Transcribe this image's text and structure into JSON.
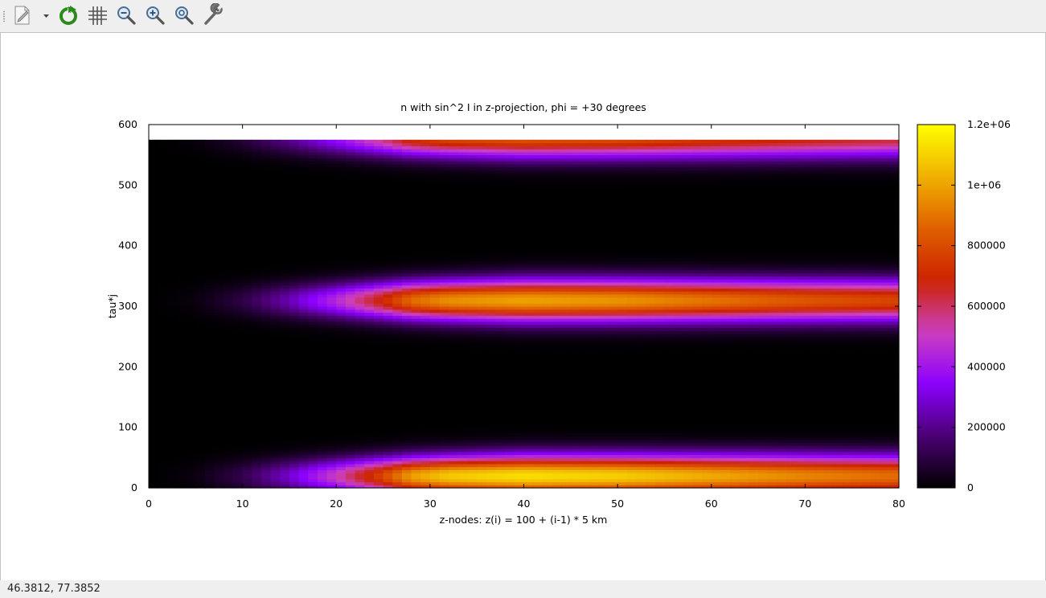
{
  "toolbar": {
    "buttons": [
      {
        "name": "export-icon"
      },
      {
        "name": "export-menu-arrow-icon"
      },
      {
        "name": "replot-icon"
      },
      {
        "name": "grid-icon"
      },
      {
        "name": "zoom-out-icon"
      },
      {
        "name": "zoom-in-icon"
      },
      {
        "name": "zoom-reset-icon"
      },
      {
        "name": "settings-wrench-icon"
      }
    ]
  },
  "status": {
    "coordinates": "46.3812,  77.3852"
  },
  "colors": {
    "colormap": [
      "#000000",
      "#4b0073",
      "#8b00ff",
      "#cc40c0",
      "#cc2200",
      "#e06000",
      "#f0b000",
      "#ffff00"
    ]
  },
  "chart_data": {
    "type": "heatmap",
    "title": "n with sin^2 I in z-projection, phi = +30 degrees",
    "xlabel": "z-nodes: z(i) = 100 + (i-1) * 5 km",
    "ylabel": "tau*j",
    "xlim": [
      0,
      80
    ],
    "ylim": [
      0,
      600
    ],
    "xticks": [
      "0",
      "10",
      "20",
      "30",
      "40",
      "50",
      "60",
      "70",
      "80"
    ],
    "yticks": [
      "0",
      "100",
      "200",
      "300",
      "400",
      "500",
      "600"
    ],
    "colorbar": {
      "range": [
        0,
        1200000
      ],
      "ticks": [
        "0",
        "200000",
        "400000",
        "600000",
        "800000",
        "1e+06",
        "1.2e+06"
      ]
    },
    "data_extent": {
      "x": [
        0,
        80
      ],
      "y": [
        0,
        575
      ]
    },
    "x_profile": [
      [
        0,
        0
      ],
      [
        5,
        0.02
      ],
      [
        10,
        0.1
      ],
      [
        15,
        0.25
      ],
      [
        20,
        0.45
      ],
      [
        25,
        0.7
      ],
      [
        28,
        0.88
      ],
      [
        32,
        0.96
      ],
      [
        40,
        1.0
      ],
      [
        50,
        0.97
      ],
      [
        60,
        0.9
      ],
      [
        70,
        0.83
      ],
      [
        80,
        0.78
      ]
    ],
    "bands": [
      {
        "tau_center": 20,
        "peak_value": 1130000
      },
      {
        "tau_center": 310,
        "peak_value": 1000000
      },
      {
        "tau_center": 580,
        "peak_value": 840000
      }
    ],
    "grid": false
  }
}
